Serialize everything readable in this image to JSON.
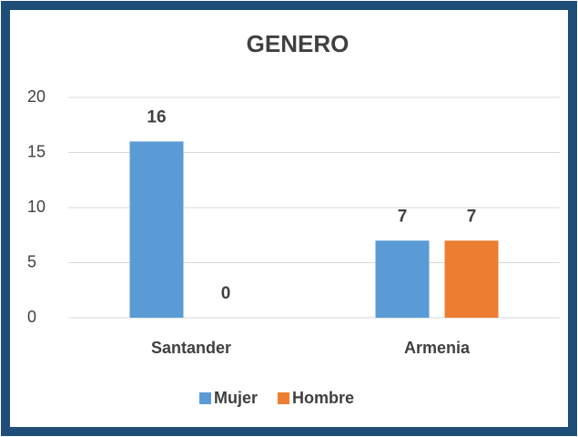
{
  "chart_data": {
    "type": "bar",
    "title": "GENERO",
    "categories": [
      "Santander",
      "Armenia"
    ],
    "series": [
      {
        "name": "Mujer",
        "color": "#5b9bd5",
        "values": [
          16,
          7
        ]
      },
      {
        "name": "Hombre",
        "color": "#ed7d31",
        "values": [
          0,
          7
        ]
      }
    ],
    "ylim": [
      0,
      20
    ],
    "yticks": [
      0,
      5,
      10,
      15,
      20
    ],
    "grid": true,
    "legend": "bottom"
  }
}
